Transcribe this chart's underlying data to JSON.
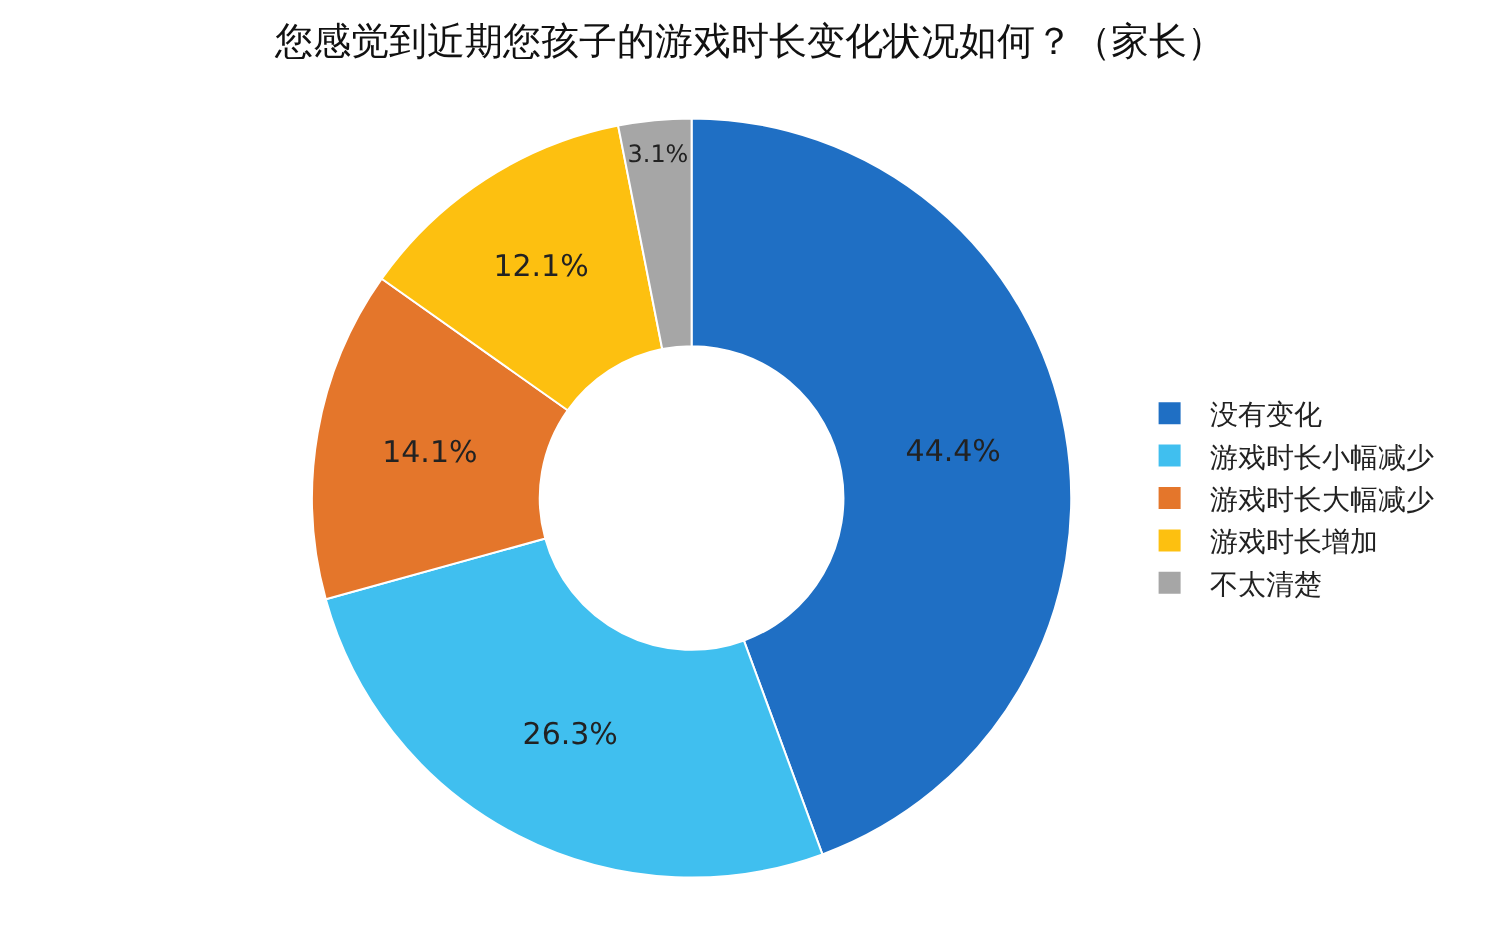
{
  "chart_data": {
    "type": "donut",
    "title": "您感觉到近期您孩子的游戏时长变化状况如何？（家长）",
    "categories": [
      "没有变化",
      "游戏时长小幅减少",
      "游戏时长大幅减少",
      "游戏时长增加",
      "不太清楚"
    ],
    "values": [
      44.4,
      26.3,
      14.1,
      12.1,
      3.1
    ],
    "value_labels": [
      "44.4%",
      "26.3%",
      "14.1%",
      "12.1%",
      "3.1%"
    ],
    "colors": [
      "#1f6fc4",
      "#40bfef",
      "#e4762b",
      "#fdc010",
      "#a6a6a6"
    ],
    "legend": "right"
  }
}
